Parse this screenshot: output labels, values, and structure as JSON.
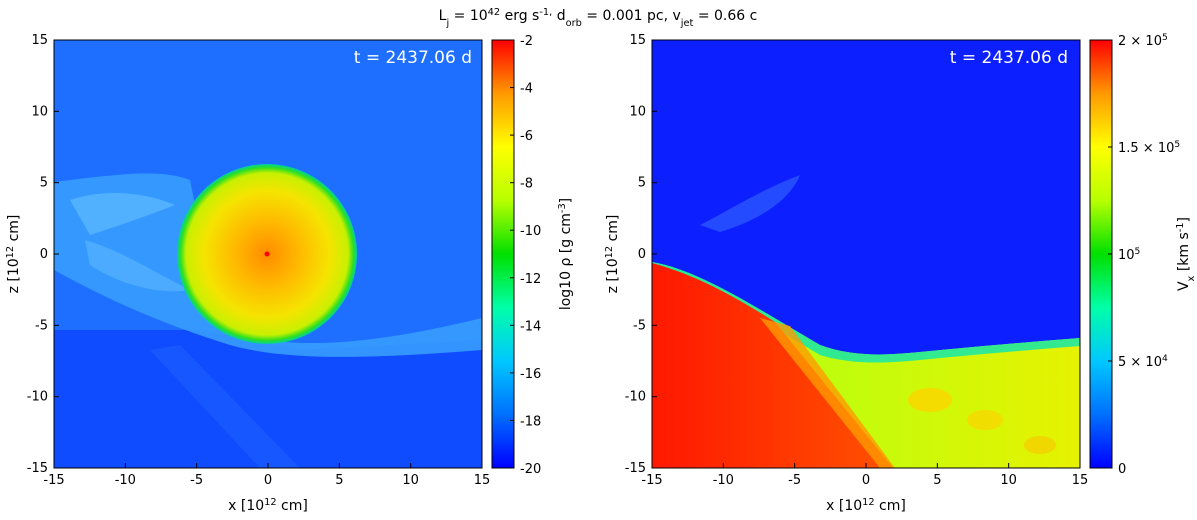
{
  "figure": {
    "suptitle": "L_j = 10^42 erg s^-1,  d_orb = 0.001 pc,  v_jet = 0.66 c"
  },
  "colors": {
    "cmap_stops": [
      "#0000ff",
      "#0070ff",
      "#00c8ff",
      "#00ffa8",
      "#00e000",
      "#b8ff00",
      "#ffff00",
      "#ff9900",
      "#ff0000"
    ],
    "bg_left": "#1e6fff",
    "bg_right": "#0b1fff",
    "jet_red": "#ff2200",
    "shocked_yellow": "#e0f000"
  },
  "chart_data": [
    {
      "type": "heatmap",
      "name": "density",
      "xlabel": "x [10^12 cm]",
      "ylabel": "z [10^12 cm]",
      "xlim": [
        -15,
        15
      ],
      "ylim": [
        -15,
        15
      ],
      "xticks": [
        "-15",
        "-10",
        "-5",
        "0",
        "5",
        "10",
        "15"
      ],
      "yticks": [
        "15",
        "10",
        "5",
        "0",
        "-5",
        "-10",
        "-15"
      ],
      "annotation": "t = 2437.06 d",
      "star": {
        "center": [
          0,
          0
        ],
        "radius": 6.3
      },
      "colorbar": {
        "label": "log10 ρ [g cm^-3]",
        "range": [
          -20,
          -2
        ],
        "ticks": [
          "-2",
          "-4",
          "-6",
          "-8",
          "-10",
          "-12",
          "-14",
          "-16",
          "-18",
          "-20"
        ]
      }
    },
    {
      "type": "heatmap",
      "name": "velocity",
      "xlabel": "x [10^12 cm]",
      "ylabel": "z [10^12 cm]",
      "xlim": [
        -15,
        15
      ],
      "ylim": [
        -15,
        15
      ],
      "xticks": [
        "-15",
        "-10",
        "-5",
        "0",
        "5",
        "10",
        "15"
      ],
      "yticks": [
        "15",
        "10",
        "5",
        "0",
        "-5",
        "-10",
        "-15"
      ],
      "annotation": "t = 2437.06 d",
      "colorbar": {
        "label": "V_x [km s^-1]",
        "range": [
          0,
          200000
        ],
        "ticks": [
          "2 × 10^5",
          "1.5 × 10^5",
          "10^5",
          "5 × 10^4",
          "0"
        ]
      }
    }
  ]
}
